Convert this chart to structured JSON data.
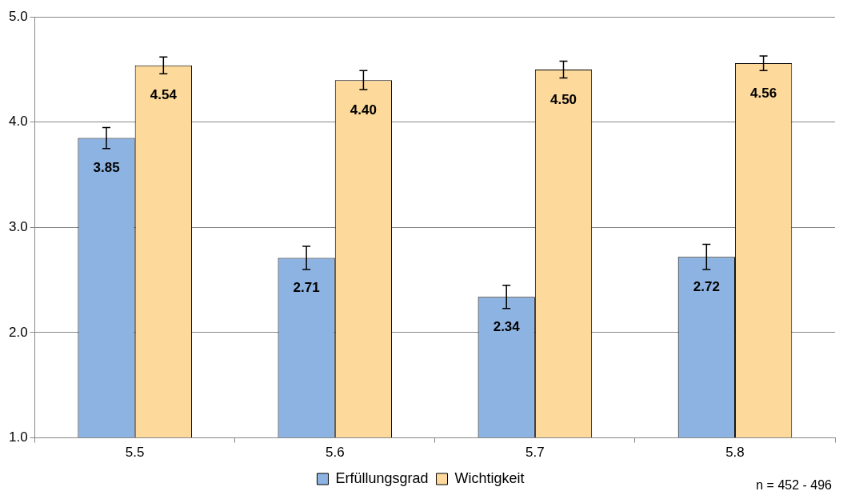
{
  "chart_data": {
    "type": "bar",
    "categories": [
      "5.5",
      "5.6",
      "5.7",
      "5.8"
    ],
    "series": [
      {
        "name": "Erfüllungsgrad",
        "color": "#8db3e2",
        "values": [
          3.85,
          2.71,
          2.34,
          2.72
        ],
        "value_labels": [
          "3.85",
          "2.71",
          "2.34",
          "2.72"
        ],
        "errors": [
          0.1,
          0.11,
          0.11,
          0.12
        ]
      },
      {
        "name": "Wichtigkeit",
        "color": "#fdd99b",
        "values": [
          4.54,
          4.4,
          4.5,
          4.56
        ],
        "value_labels": [
          "4.54",
          "4.40",
          "4.50",
          "4.56"
        ],
        "errors": [
          0.08,
          0.09,
          0.08,
          0.07
        ]
      }
    ],
    "ylim": [
      1,
      5
    ],
    "yticks": [
      {
        "value": 1,
        "label": "1.0"
      },
      {
        "value": 2,
        "label": "2.0"
      },
      {
        "value": 3,
        "label": "3.0"
      },
      {
        "value": 4,
        "label": "4.0"
      },
      {
        "value": 5,
        "label": "5.0"
      }
    ],
    "grid": "y",
    "legend": "bottom",
    "annotations": [
      "n = 452 - 496"
    ]
  }
}
